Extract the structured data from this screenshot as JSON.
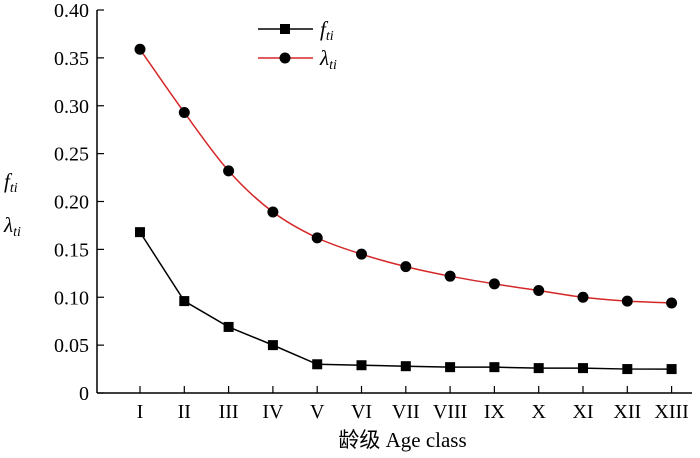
{
  "chart_data": {
    "type": "line",
    "categories": [
      "I",
      "II",
      "III",
      "IV",
      "V",
      "VI",
      "VII",
      "VIII",
      "IX",
      "X",
      "XI",
      "XII",
      "XIII"
    ],
    "series": [
      {
        "name": "f_ti",
        "label_main": "f",
        "label_sub": "ti",
        "color": "#000000",
        "marker": "square",
        "values": [
          0.168,
          0.096,
          0.069,
          0.05,
          0.03,
          0.029,
          0.028,
          0.027,
          0.027,
          0.026,
          0.026,
          0.025,
          0.025
        ]
      },
      {
        "name": "λ_ti",
        "label_main": "λ",
        "label_sub": "ti",
        "color": "#d62728",
        "marker": "circle",
        "values": [
          0.359,
          0.293,
          0.232,
          0.189,
          0.162,
          0.145,
          0.132,
          0.122,
          0.114,
          0.107,
          0.1,
          0.096,
          0.094
        ]
      }
    ],
    "xlabel": "龄级 Age class",
    "ylabel_lines": [
      {
        "main": "f",
        "sub": "ti"
      },
      {
        "main": "λ",
        "sub": "ti"
      }
    ],
    "ylim": [
      0,
      0.4
    ],
    "yticks": [
      "0",
      "0.05",
      "0.10",
      "0.15",
      "0.20",
      "0.25",
      "0.30",
      "0.35",
      "0.40"
    ],
    "legend_position": "top-center",
    "grid": false
  }
}
